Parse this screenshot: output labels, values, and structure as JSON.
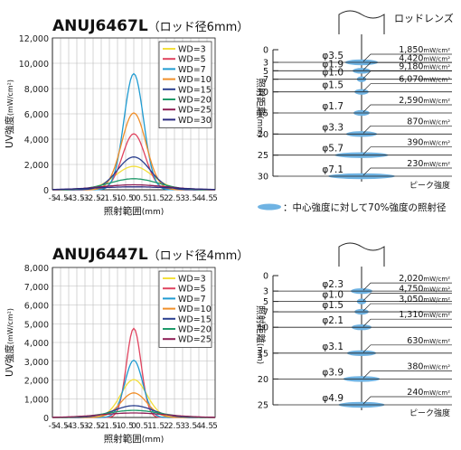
{
  "chart_data": [
    {
      "type": "line",
      "title": "ANUJ6467L",
      "subtitle": "（ロッド径6mm）",
      "xlabel": "照射範囲",
      "xunit": "(mm)",
      "ylabel": "UV強度",
      "yunit": "(mW/cm²)",
      "xlim": [
        -5,
        5
      ],
      "ylim": [
        0,
        12000
      ],
      "xticks": [
        "-5",
        "-4.5",
        "-4",
        "-3.5",
        "-3",
        "-2.5",
        "-2",
        "-1.5",
        "-1",
        "-0.5",
        "0",
        "0.5",
        "1",
        "1.5",
        "2",
        "2.5",
        "3",
        "3.5",
        "4",
        "4.5",
        "5"
      ],
      "yticks": [
        "0",
        "2,000",
        "4,000",
        "6,000",
        "8,000",
        "10,000",
        "12,000"
      ],
      "grid": true,
      "legend": "top-center",
      "series": [
        {
          "name": "WD=3",
          "color": "#f3df3c",
          "peak": 1850,
          "sigma": 1.15
        },
        {
          "name": "WD=5",
          "color": "#e0445f",
          "peak": 4420,
          "sigma": 0.7
        },
        {
          "name": "WD=7",
          "color": "#1f9bd1",
          "peak": 9180,
          "sigma": 0.6
        },
        {
          "name": "WD=10",
          "color": "#f08f2a",
          "peak": 6070,
          "sigma": 0.75
        },
        {
          "name": "WD=15",
          "color": "#2a3f8f",
          "peak": 2590,
          "sigma": 1.0
        },
        {
          "name": "WD=20",
          "color": "#1e9a6a",
          "peak": 870,
          "sigma": 1.5
        },
        {
          "name": "WD=25",
          "color": "#8e1e55",
          "peak": 390,
          "sigma": 2.0
        },
        {
          "name": "WD=30",
          "color": "#2b2b80",
          "peak": 230,
          "sigma": 2.4
        }
      ]
    },
    {
      "type": "line",
      "title": "ANUJ6447L",
      "subtitle": "（ロッド径4mm）",
      "xlabel": "照射範囲",
      "xunit": "(mm)",
      "ylabel": "UV強度",
      "yunit": "(mW/cm²)",
      "xlim": [
        -5,
        5
      ],
      "ylim": [
        0,
        8000
      ],
      "xticks": [
        "-5",
        "-4.5",
        "-4",
        "-3.5",
        "-3",
        "-2.5",
        "-2",
        "-1.5",
        "-1",
        "-0.5",
        "0",
        "0.5",
        "1",
        "1.5",
        "2",
        "2.5",
        "3",
        "3.5",
        "4",
        "4.5",
        "5"
      ],
      "yticks": [
        "0",
        "1,000",
        "2,000",
        "3,000",
        "4,000",
        "5,000",
        "6,000",
        "7,000",
        "8,000"
      ],
      "grid": true,
      "legend": "top-center",
      "series": [
        {
          "name": "WD=3",
          "color": "#f3df3c",
          "peak": 2020,
          "sigma": 0.8
        },
        {
          "name": "WD=5",
          "color": "#e0445f",
          "peak": 4750,
          "sigma": 0.45
        },
        {
          "name": "WD=7",
          "color": "#1f9bd1",
          "peak": 3050,
          "sigma": 0.55
        },
        {
          "name": "WD=10",
          "color": "#f08f2a",
          "peak": 1310,
          "sigma": 0.8
        },
        {
          "name": "WD=15",
          "color": "#2a3f8f",
          "peak": 630,
          "sigma": 1.2
        },
        {
          "name": "WD=20",
          "color": "#1e9a6a",
          "peak": 380,
          "sigma": 1.6
        },
        {
          "name": "WD=25",
          "color": "#8e1e55",
          "peak": 240,
          "sigma": 2.0
        }
      ]
    }
  ],
  "diagrams": [
    {
      "lens_label": "ロッドレンズ",
      "axis_label": "照射距離",
      "axis_unit": "(mm)",
      "peak_label": "ピーク強度",
      "scale_ticks": [
        "0",
        "3",
        "5",
        "7",
        "10",
        "15",
        "20",
        "25",
        "30"
      ],
      "rows": [
        {
          "wd": "3",
          "diameter": "φ3.5",
          "spot": 3.5,
          "intensity": "1,850",
          "unit": "mW/cm²"
        },
        {
          "wd": "5",
          "diameter": "φ1.9",
          "spot": 1.9,
          "intensity": "4,420",
          "unit": "mW/cm²"
        },
        {
          "wd": "7",
          "diameter": "φ1.0",
          "spot": 1.0,
          "intensity": "9,180",
          "unit": "mW/cm²"
        },
        {
          "wd": "10",
          "diameter": "φ1.5",
          "spot": 1.5,
          "intensity": "6,070",
          "unit": "mW/cm²"
        },
        {
          "wd": "15",
          "diameter": "φ1.7",
          "spot": 1.7,
          "intensity": "2,590",
          "unit": "mW/cm²"
        },
        {
          "wd": "20",
          "diameter": "φ3.3",
          "spot": 3.3,
          "intensity": "870",
          "unit": "mW/cm²"
        },
        {
          "wd": "25",
          "diameter": "φ5.7",
          "spot": 5.7,
          "intensity": "390",
          "unit": "mW/cm²"
        },
        {
          "wd": "30",
          "diameter": "φ7.1",
          "spot": 7.1,
          "intensity": "230",
          "unit": "mW/cm²"
        }
      ]
    },
    {
      "lens_label": "",
      "axis_label": "照射距離",
      "axis_unit": "(mm)",
      "peak_label": "ピーク強度",
      "scale_ticks": [
        "0",
        "3",
        "5",
        "7",
        "10",
        "15",
        "20",
        "25"
      ],
      "rows": [
        {
          "wd": "3",
          "diameter": "φ2.3",
          "spot": 2.3,
          "intensity": "2,020",
          "unit": "mW/cm²"
        },
        {
          "wd": "5",
          "diameter": "φ1.0",
          "spot": 1.0,
          "intensity": "4,750",
          "unit": "mW/cm²"
        },
        {
          "wd": "7",
          "diameter": "φ1.5",
          "spot": 1.5,
          "intensity": "3,050",
          "unit": "mW/cm²"
        },
        {
          "wd": "10",
          "diameter": "φ2.1",
          "spot": 2.1,
          "intensity": "1,310",
          "unit": "mW/cm²"
        },
        {
          "wd": "15",
          "diameter": "φ3.1",
          "spot": 3.1,
          "intensity": "630",
          "unit": "mW/cm²"
        },
        {
          "wd": "20",
          "diameter": "φ3.9",
          "spot": 3.9,
          "intensity": "380",
          "unit": "mW/cm²"
        },
        {
          "wd": "25",
          "diameter": "φ4.9",
          "spot": 4.9,
          "intensity": "240",
          "unit": "mW/cm²"
        }
      ]
    }
  ],
  "note": "：中心強度に対して70%強度の照射径",
  "colors": {
    "spot": "#6fb3e3",
    "grid": "#bbbbbb",
    "axis": "#222222"
  }
}
